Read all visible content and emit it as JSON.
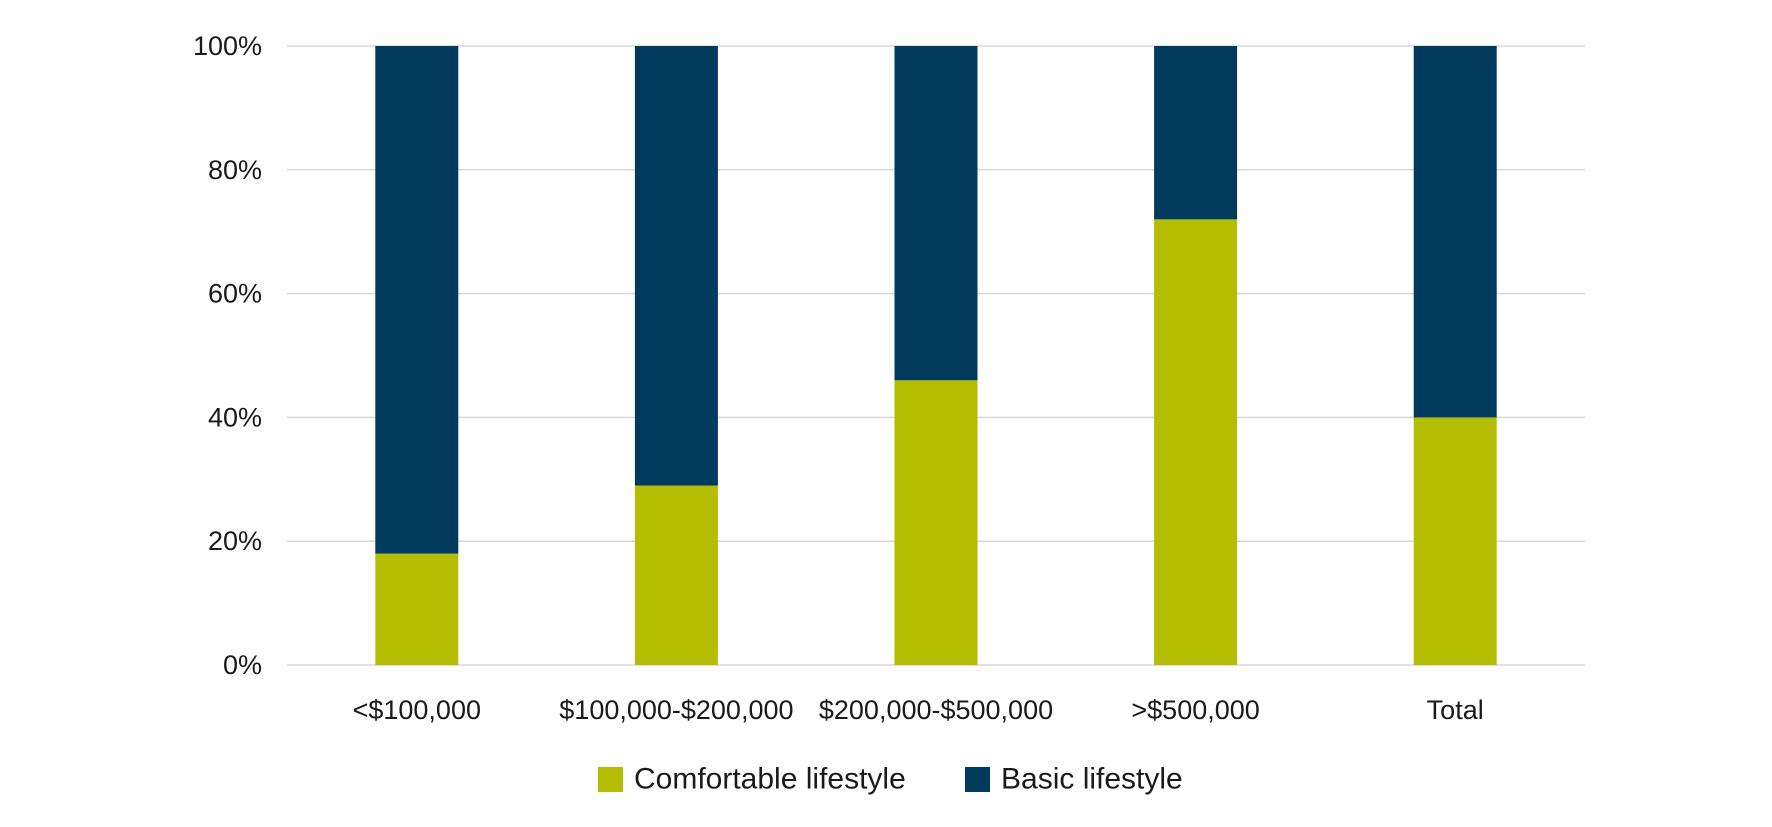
{
  "chart_data": {
    "type": "bar",
    "stacked": true,
    "title": "",
    "xlabel": "",
    "ylabel": "",
    "categories": [
      "<$100,000",
      "$100,000-$200,000",
      "$200,000-$500,000",
      ">$500,000",
      "Total"
    ],
    "series": [
      {
        "name": "Comfortable lifestyle",
        "color": "#b5bd00",
        "values": [
          18,
          29,
          46,
          72,
          40
        ]
      },
      {
        "name": "Basic lifestyle",
        "color": "#003a5d",
        "values": [
          82,
          71,
          54,
          28,
          60
        ]
      }
    ],
    "ylim": [
      0,
      100
    ],
    "yticks": [
      0,
      20,
      40,
      60,
      80,
      100
    ],
    "ytick_labels": [
      "0%",
      "20%",
      "40%",
      "60%",
      "80%",
      "100%"
    ],
    "grid": true,
    "gridline_color": "#d9d9d9",
    "legend_position": "bottom-center"
  }
}
